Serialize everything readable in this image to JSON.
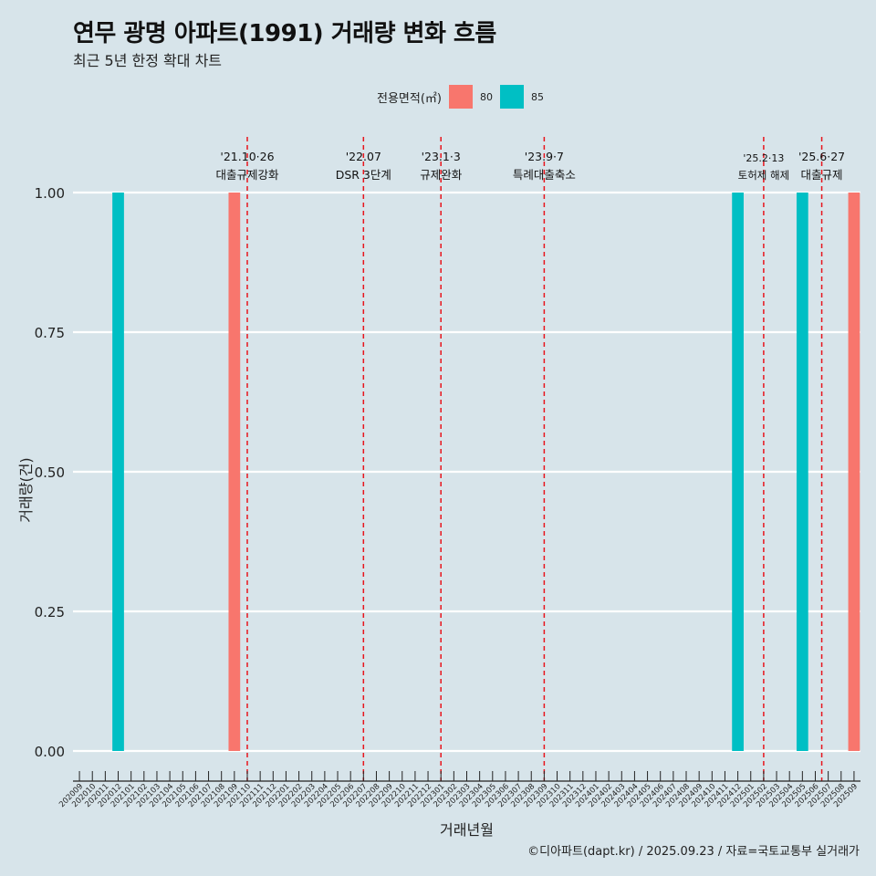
{
  "title": "연무 광명 아파트(1991) 거래량 변화 흐름",
  "subtitle": "최근 5년 한정 확대 차트",
  "caption": "©디아파트(dapt.kr) / 2025.09.23 / 자료=국토교통부 실거래가",
  "chart_data": {
    "type": "bar",
    "xlabel": "거래년월",
    "ylabel": "거래량(건)",
    "ylim": [
      0,
      1
    ],
    "y_ticks": [
      "0.00",
      "0.25",
      "0.50",
      "0.75",
      "1.00"
    ],
    "legend": {
      "title": "전용면적(㎡)",
      "placement": "top",
      "items": [
        {
          "label": "80",
          "color": "#f8766d"
        },
        {
          "label": "85",
          "color": "#00bfc4"
        }
      ]
    },
    "categories": [
      "202009",
      "202010",
      "202011",
      "202012",
      "202101",
      "202102",
      "202103",
      "202104",
      "202105",
      "202106",
      "202107",
      "202108",
      "202109",
      "202110",
      "202111",
      "202112",
      "202201",
      "202202",
      "202203",
      "202204",
      "202205",
      "202206",
      "202207",
      "202208",
      "202209",
      "202210",
      "202211",
      "202212",
      "202301",
      "202302",
      "202303",
      "202304",
      "202305",
      "202306",
      "202307",
      "202308",
      "202309",
      "202310",
      "202311",
      "202312",
      "202401",
      "202402",
      "202403",
      "202404",
      "202405",
      "202406",
      "202407",
      "202408",
      "202409",
      "202410",
      "202411",
      "202412",
      "202501",
      "202502",
      "202503",
      "202504",
      "202505",
      "202506",
      "202507",
      "202508",
      "202509"
    ],
    "series": [
      {
        "name": "80",
        "color": "#f8766d",
        "points": [
          {
            "x": "202109",
            "y": 1
          },
          {
            "x": "202509",
            "y": 1
          }
        ]
      },
      {
        "name": "85",
        "color": "#00bfc4",
        "points": [
          {
            "x": "202012",
            "y": 1
          },
          {
            "x": "202412",
            "y": 1
          },
          {
            "x": "202505",
            "y": 1
          }
        ]
      }
    ],
    "annotations": [
      {
        "date": "'21.10·26",
        "text": "대출규제강화",
        "x": "202110",
        "offset": 0.0
      },
      {
        "date": "'22.07",
        "text": "DSR 3단계",
        "x": "202207",
        "offset": 0.0
      },
      {
        "date": "'23.1·3",
        "text": "규제완화",
        "x": "202301",
        "offset": 0.0
      },
      {
        "date": "'23.9·7",
        "text": "특례대출축소",
        "x": "202309",
        "offset": 0.0
      },
      {
        "date": "'25.2·13",
        "text": "토허제 해제",
        "x": "202502",
        "offset": 0.0
      },
      {
        "date": "'25.6·27",
        "text": "대출규제",
        "x": "202506",
        "offset": 0.5
      }
    ]
  }
}
